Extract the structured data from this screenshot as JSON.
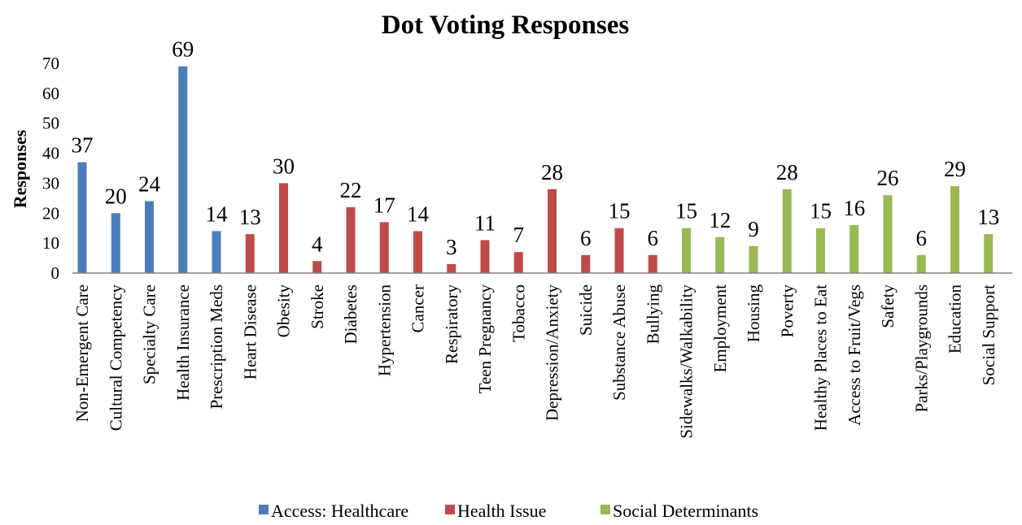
{
  "chart_data": {
    "type": "bar",
    "title": "Dot Voting Responses",
    "xlabel": "",
    "ylabel": "Responses",
    "ylim": [
      0,
      70
    ],
    "yticks": [
      0,
      10,
      20,
      30,
      40,
      50,
      60,
      70
    ],
    "grid": false,
    "legend_position": "bottom",
    "categories": [
      "Non-Emergent Care",
      "Cultural Competency",
      "Specialty Care",
      "Health Insurance",
      "Prescription Meds",
      "Heart Disease",
      "Obesity",
      "Stroke",
      "Diabetes",
      "Hypertension",
      "Cancer",
      "Respiratory",
      "Teen Pregnancy",
      "Tobacco",
      "Depression/Anxiety",
      "Suicide",
      "Substance Abuse",
      "Bullying",
      "Sidewalks/Walkability",
      "Employment",
      "Housing",
      "Poverty",
      "Healthy Places to Eat",
      "Access to Fruit/Vegs",
      "Safety",
      "Parks/Playgrounds",
      "Education",
      "Social Support"
    ],
    "series": [
      {
        "name": "Access: Healthcare",
        "color": "#4a7ebb",
        "values": [
          37,
          20,
          24,
          69,
          14,
          null,
          null,
          null,
          null,
          null,
          null,
          null,
          null,
          null,
          null,
          null,
          null,
          null,
          null,
          null,
          null,
          null,
          null,
          null,
          null,
          null,
          null,
          null
        ]
      },
      {
        "name": "Health Issue",
        "color": "#be4b48",
        "values": [
          null,
          null,
          null,
          null,
          null,
          13,
          30,
          4,
          22,
          17,
          14,
          3,
          11,
          7,
          28,
          6,
          15,
          6,
          null,
          null,
          null,
          null,
          null,
          null,
          null,
          null,
          null,
          null
        ]
      },
      {
        "name": "Social Determinants",
        "color": "#98b954",
        "values": [
          null,
          null,
          null,
          null,
          null,
          null,
          null,
          null,
          null,
          null,
          null,
          null,
          null,
          null,
          null,
          null,
          null,
          null,
          15,
          12,
          9,
          28,
          15,
          16,
          26,
          6,
          29,
          13
        ]
      }
    ]
  }
}
